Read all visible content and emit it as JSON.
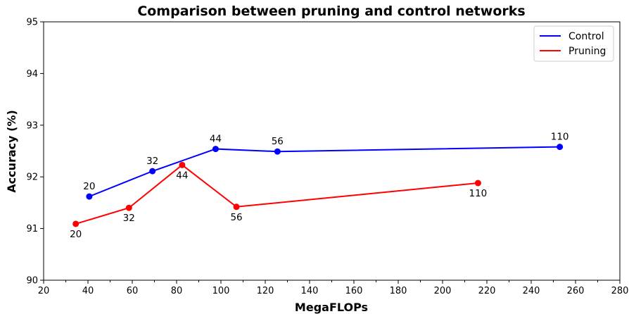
{
  "chart_data": {
    "type": "line",
    "title": "Comparison between pruning and control networks",
    "xlabel": "MegaFLOPs",
    "ylabel": "Accuracy (%)",
    "xlim": [
      20,
      280
    ],
    "ylim": [
      90,
      95
    ],
    "xticks": [
      20,
      40,
      60,
      80,
      100,
      120,
      140,
      160,
      180,
      200,
      220,
      240,
      260,
      280
    ],
    "yticks": [
      90,
      91,
      92,
      93,
      94,
      95
    ],
    "grid": false,
    "legend_position": "top-right",
    "series": [
      {
        "name": "Control",
        "color": "#0000ff",
        "label_position": "above",
        "points": [
          {
            "x": 40.6,
            "y": 91.62,
            "label": "20"
          },
          {
            "x": 69.1,
            "y": 92.11,
            "label": "32"
          },
          {
            "x": 97.6,
            "y": 92.54,
            "label": "44"
          },
          {
            "x": 125.5,
            "y": 92.49,
            "label": "56"
          },
          {
            "x": 252.9,
            "y": 92.58,
            "label": "110"
          }
        ]
      },
      {
        "name": "Pruning",
        "color": "#ff0000",
        "label_position": "below",
        "points": [
          {
            "x": 34.5,
            "y": 91.09,
            "label": "20"
          },
          {
            "x": 58.5,
            "y": 91.4,
            "label": "32"
          },
          {
            "x": 82.5,
            "y": 92.23,
            "label": "44"
          },
          {
            "x": 107.0,
            "y": 91.42,
            "label": "56"
          },
          {
            "x": 216.0,
            "y": 91.88,
            "label": "110"
          }
        ]
      }
    ]
  }
}
